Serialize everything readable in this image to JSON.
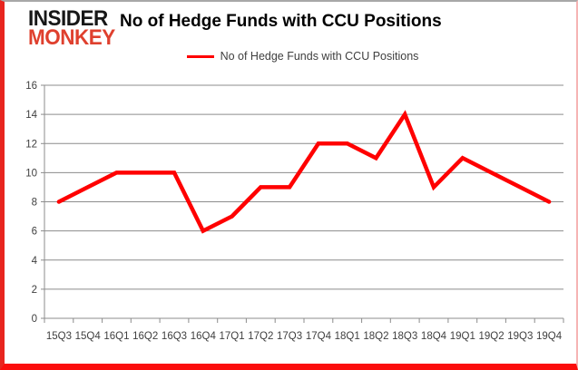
{
  "logo": {
    "line1": "INSIDER",
    "line2": "MONKEY"
  },
  "header": {
    "title": "No of Hedge Funds with CCU Positions"
  },
  "legend": {
    "label": "No of Hedge Funds with CCU Positions"
  },
  "chart_data": {
    "type": "line",
    "title": "No of Hedge Funds with CCU Positions",
    "categories": [
      "15Q3",
      "15Q4",
      "16Q1",
      "16Q2",
      "16Q3",
      "16Q4",
      "17Q1",
      "17Q2",
      "17Q3",
      "17Q4",
      "18Q1",
      "18Q2",
      "18Q3",
      "18Q4",
      "19Q1",
      "19Q2",
      "19Q3",
      "19Q4"
    ],
    "series": [
      {
        "name": "No of Hedge Funds with CCU Positions",
        "values": [
          8,
          9,
          10,
          10,
          10,
          6,
          7,
          9,
          9,
          12,
          12,
          11,
          14,
          9,
          11,
          10,
          9,
          8
        ],
        "color": "#ff0000"
      }
    ],
    "xlabel": "",
    "ylabel": "",
    "ylim": [
      0,
      16
    ],
    "ytick_step": 2,
    "grid": true,
    "legend_position": "top"
  },
  "colors": {
    "series_red": "#ff0000",
    "logo_red": "#df402e",
    "logo_black": "#171717",
    "grid_gray": "#8c8c8c",
    "axis_text": "#3f3f3f",
    "border_left": "#e8251f",
    "border_bottom": "#fb0d0c",
    "border_right": "#f6b4b4",
    "border_top": "#a8a8a8"
  }
}
